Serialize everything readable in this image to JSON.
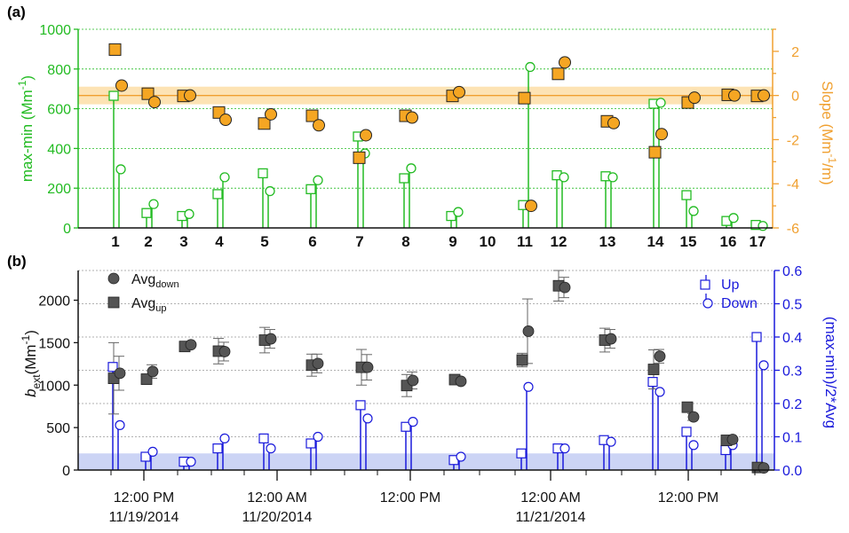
{
  "colors": {
    "green": "#22bb22",
    "orange": "#f5a623",
    "orange_band": "#fde3b4",
    "orange_line": "#f0a030",
    "blue": "#1a1adb",
    "blue_band": "#ccd4f5",
    "gray": "#555555",
    "grid": "#999999"
  },
  "chart_data": [
    {
      "panel": "(a)",
      "type": "scatter",
      "left_axis": {
        "label": "max-min (Mm",
        "label_sup": "-1",
        "label_tail": ")",
        "range": [
          0,
          1000
        ],
        "ticks": [
          "0",
          "200",
          "400",
          "600",
          "800",
          "1000"
        ]
      },
      "right_axis": {
        "label": "Slope (Mm",
        "label_sup": "-1",
        "label_tail": "/m)",
        "range": [
          -6,
          3
        ],
        "ticks": [
          "-6",
          "-4",
          "-2",
          "0",
          "2"
        ]
      },
      "categories": [
        "1",
        "2",
        "3",
        "4",
        "5",
        "6",
        "7",
        "8",
        "9",
        "10",
        "11",
        "12",
        "13",
        "14",
        "15",
        "16",
        "17"
      ],
      "band": {
        "center": 0,
        "low": -0.4,
        "high": 0.4
      },
      "series": [
        {
          "marker": "open-square",
          "axis": "left",
          "values": [
            665,
            75,
            60,
            170,
            275,
            195,
            460,
            250,
            60,
            null,
            115,
            265,
            260,
            625,
            165,
            35,
            15
          ]
        },
        {
          "marker": "open-circle",
          "axis": "left",
          "values": [
            295,
            120,
            70,
            255,
            185,
            240,
            375,
            300,
            80,
            null,
            810,
            255,
            255,
            630,
            85,
            50,
            10
          ]
        },
        {
          "marker": "filled-square",
          "axis": "right",
          "values": [
            2.1,
            0.1,
            0,
            -0.75,
            -1.25,
            -0.9,
            -2.8,
            -0.9,
            0,
            null,
            -0.1,
            1.0,
            -1.15,
            -2.55,
            -0.3,
            0.05,
            0.0
          ]
        },
        {
          "marker": "filled-circle",
          "axis": "right",
          "values": [
            0.45,
            -0.3,
            0,
            -1.1,
            -0.85,
            -1.35,
            -1.8,
            -1.0,
            0.15,
            null,
            -5.0,
            1.5,
            -1.25,
            -1.75,
            -0.1,
            0.0,
            0.0
          ]
        }
      ]
    },
    {
      "panel": "(b)",
      "type": "scatter",
      "left_axis": {
        "label_b": "b",
        "label_sub": "ext",
        "label_mid": "(Mm",
        "label_sup": "-1",
        "label_tail": ")",
        "range": [
          0,
          2350
        ],
        "ticks": [
          "0",
          "500",
          "1000",
          "1500",
          "2000"
        ]
      },
      "right_axis": {
        "label": "(max-min)/2*Avg",
        "range": [
          0,
          0.6
        ],
        "ticks": [
          "0.0",
          "0.1",
          "0.2",
          "0.3",
          "0.4",
          "0.5",
          "0.6"
        ]
      },
      "x_ticks": [
        {
          "line1": "12:00 PM",
          "line2": "11/19/2014"
        },
        {
          "line1": "12:00 AM",
          "line2": "11/20/2014"
        },
        {
          "line1": "12:00 PM",
          "line2": ""
        },
        {
          "line1": "12:00 AM",
          "line2": "11/21/2014"
        },
        {
          "line1": "12:00 PM",
          "line2": ""
        }
      ],
      "band": {
        "low": 0,
        "high": 0.05
      },
      "legend_left": [
        {
          "marker": "filled-circle",
          "text": "Avg",
          "sub": "down"
        },
        {
          "marker": "filled-square",
          "text": "Avg",
          "sub": "up"
        }
      ],
      "legend_right": [
        {
          "marker": "open-square",
          "text": "Up"
        },
        {
          "marker": "open-circle",
          "text": "Down"
        }
      ],
      "avg_up": [
        1080,
        1070,
        1455,
        1400,
        1530,
        1235,
        1210,
        995,
        1065,
        1295,
        2170,
        1530,
        1185,
        740,
        350,
        30
      ],
      "err_up": [
        420,
        60,
        40,
        150,
        150,
        130,
        210,
        130,
        40,
        80,
        180,
        140,
        230,
        40,
        20,
        10
      ],
      "avg_down": [
        1140,
        1160,
        1475,
        1395,
        1545,
        1255,
        1210,
        1055,
        1045,
        1635,
        2150,
        1545,
        1340,
        625,
        360,
        25
      ],
      "err_down": [
        200,
        80,
        30,
        110,
        110,
        110,
        150,
        100,
        30,
        380,
        120,
        110,
        80,
        40,
        30,
        10
      ],
      "ratio_up": [
        0.31,
        0.04,
        0.025,
        0.065,
        0.095,
        0.08,
        0.195,
        0.13,
        0.03,
        0.05,
        0.065,
        0.09,
        0.265,
        0.115,
        0.06,
        0.4
      ],
      "ratio_down": [
        0.135,
        0.055,
        0.025,
        0.095,
        0.065,
        0.1,
        0.155,
        0.145,
        0.04,
        0.25,
        0.065,
        0.085,
        0.235,
        0.075,
        0.075,
        0.315
      ]
    }
  ]
}
